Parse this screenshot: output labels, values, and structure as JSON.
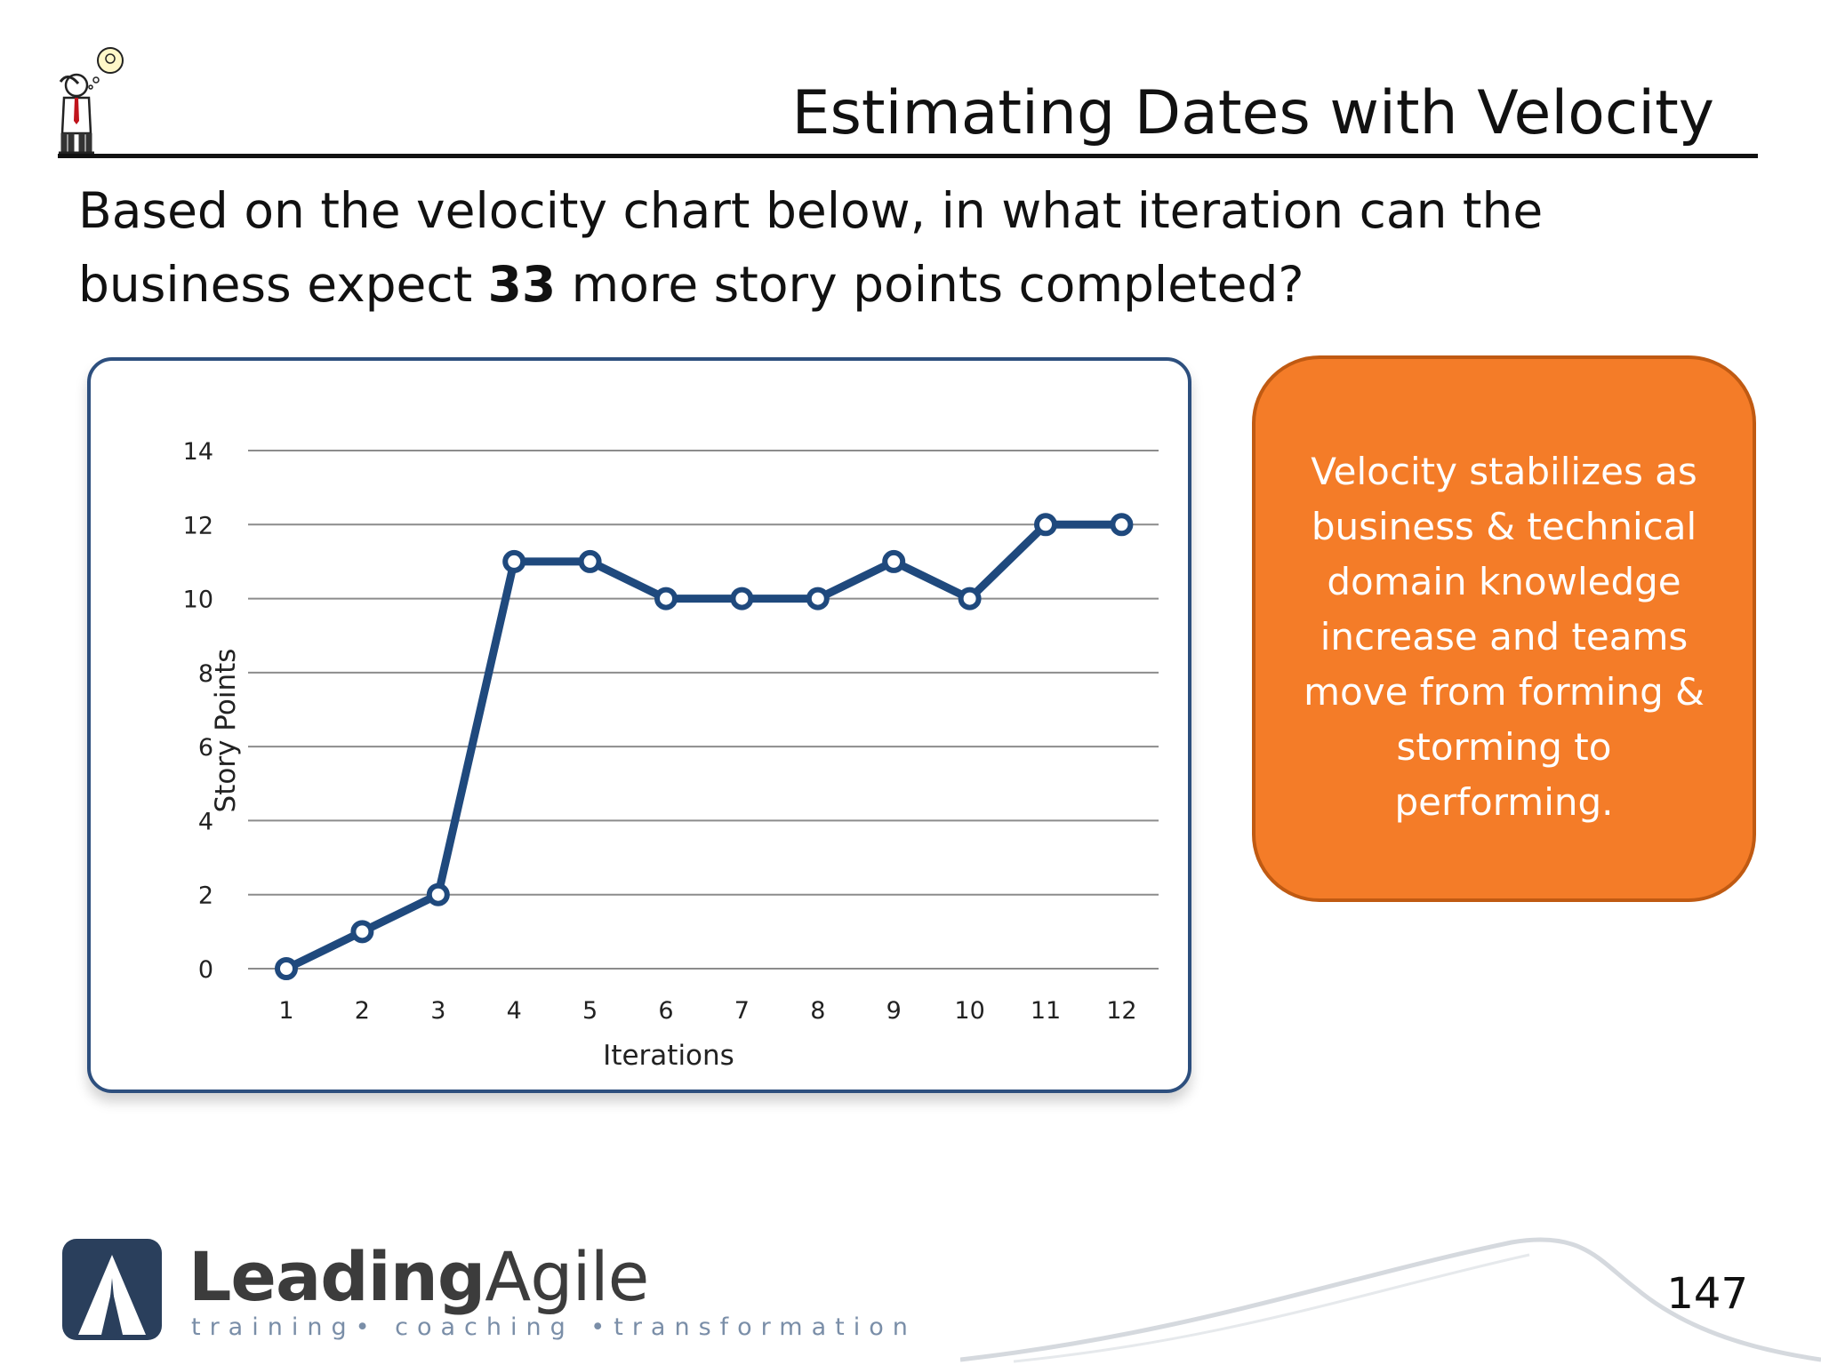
{
  "slide": {
    "title": "Estimating Dates with Velocity",
    "question_before": "Based on the velocity chart below, in what iteration can the business expect ",
    "question_bold": "33",
    "question_after": " more story points completed?",
    "page_number": "147"
  },
  "callout": {
    "text": "Velocity stabilizes as business & technical domain knowledge increase and teams move from forming & storming to performing.",
    "color": "#f47c28"
  },
  "branding": {
    "name_bold": "Leading",
    "name_regular": "Agile",
    "tagline": "training• coaching •transformation"
  },
  "chart_data": {
    "type": "line",
    "xlabel": "Iterations",
    "ylabel": "Story Points",
    "x": [
      1,
      2,
      3,
      4,
      5,
      6,
      7,
      8,
      9,
      10,
      11,
      12
    ],
    "series": [
      {
        "values": [
          0,
          1,
          2,
          11,
          11,
          10,
          10,
          10,
          11,
          10,
          12,
          12
        ],
        "color": "#1f497d"
      }
    ],
    "ylim": [
      0,
      14
    ],
    "yticks": [
      0,
      2,
      4,
      6,
      8,
      10,
      12,
      14
    ],
    "grid": true,
    "legend": "none"
  }
}
